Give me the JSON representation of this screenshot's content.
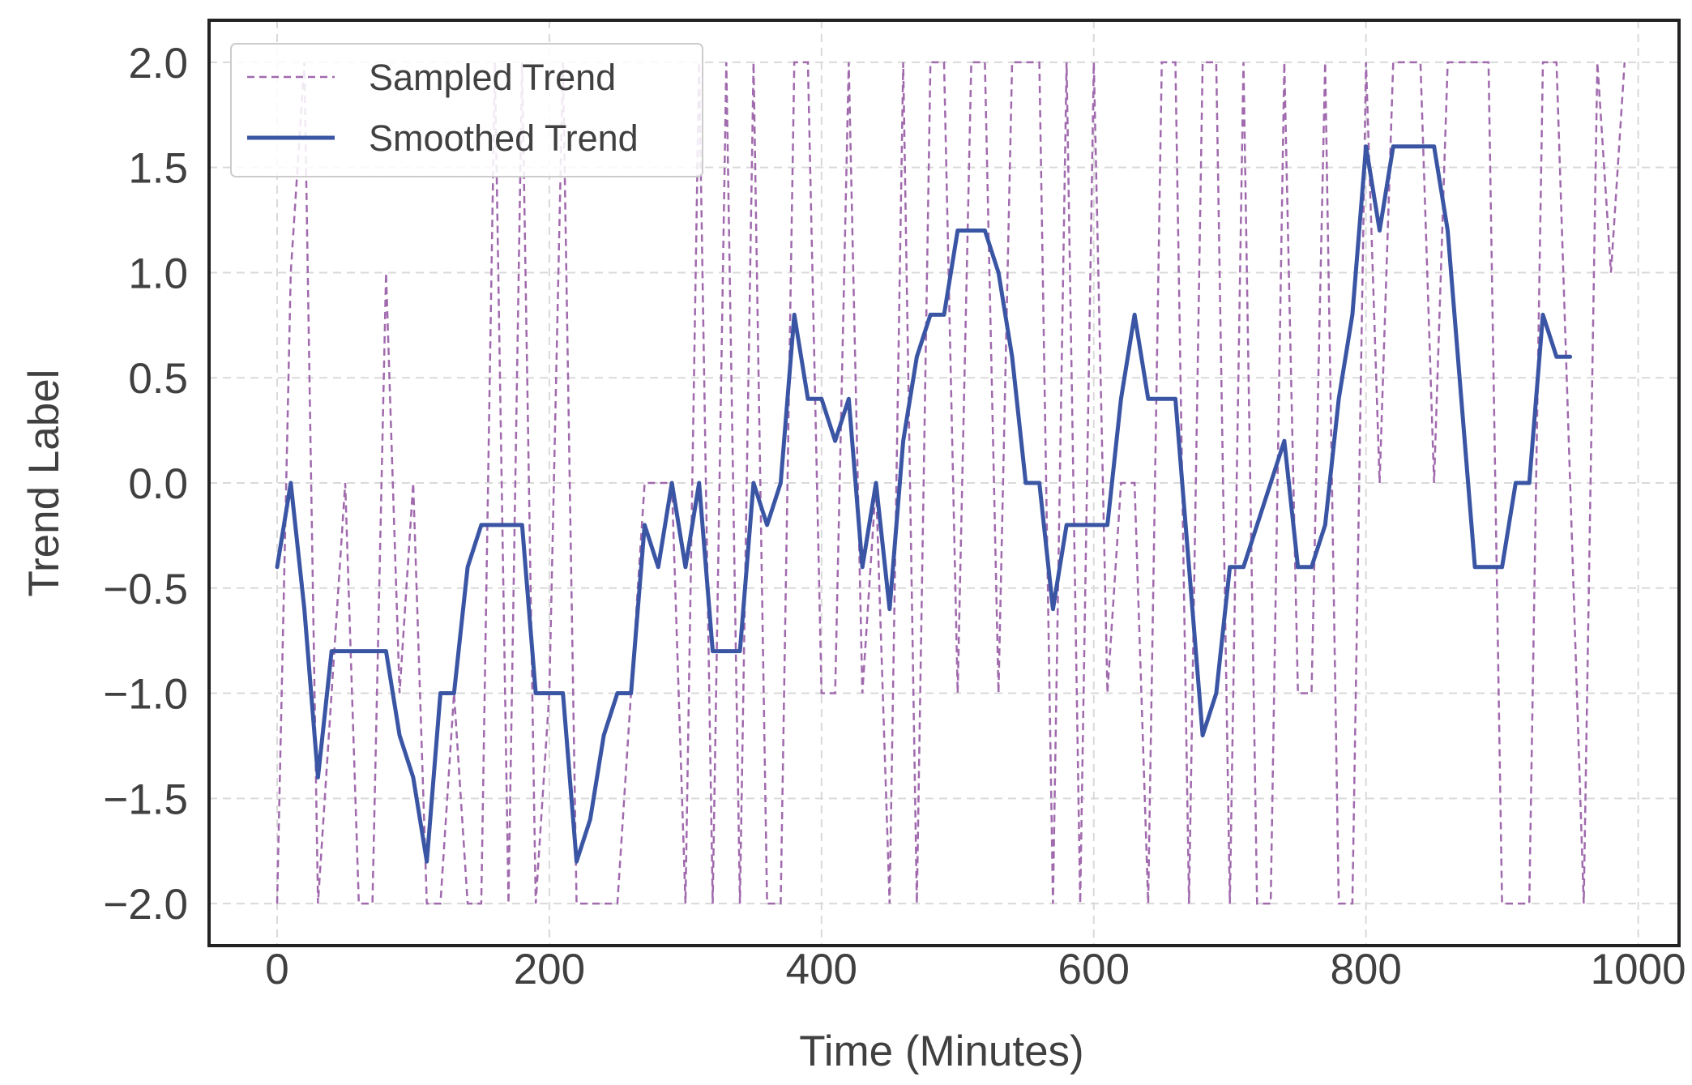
{
  "chart_data": {
    "type": "line",
    "title": "",
    "xlabel": "Time (Minutes)",
    "ylabel": "Trend Label",
    "xlim": [
      -50,
      1030
    ],
    "ylim": [
      -2.2,
      2.2
    ],
    "x_ticks": [
      0,
      200,
      400,
      600,
      800,
      1000
    ],
    "x_tick_labels": [
      "0",
      "200",
      "400",
      "600",
      "800",
      "1000"
    ],
    "y_ticks": [
      2.0,
      1.5,
      1.0,
      0.5,
      0.0,
      -0.5,
      -1.0,
      -1.5,
      -2.0
    ],
    "y_tick_labels": [
      "2.0",
      "1.5",
      "1.0",
      "0.5",
      "0.0",
      "−0.5",
      "−1.0",
      "−1.5",
      "−2.0"
    ],
    "grid": true,
    "legend_position": "top-left",
    "colors": {
      "sampled": "#a06aad",
      "smoothed": "#3a55a4",
      "frame": "#222222"
    },
    "series": [
      {
        "name": "Sampled Trend",
        "style": "dashed",
        "x": [
          0,
          10,
          20,
          30,
          40,
          50,
          60,
          70,
          80,
          90,
          100,
          110,
          120,
          130,
          140,
          150,
          160,
          170,
          180,
          190,
          200,
          210,
          220,
          230,
          240,
          250,
          260,
          270,
          280,
          290,
          300,
          310,
          320,
          330,
          340,
          350,
          360,
          370,
          380,
          390,
          400,
          410,
          420,
          430,
          440,
          450,
          460,
          470,
          480,
          490,
          500,
          510,
          520,
          530,
          540,
          550,
          560,
          570,
          580,
          590,
          600,
          610,
          620,
          630,
          640,
          650,
          660,
          670,
          680,
          690,
          700,
          710,
          720,
          730,
          740,
          750,
          760,
          770,
          780,
          790,
          800,
          810,
          820,
          830,
          840,
          850,
          860,
          870,
          880,
          890,
          900,
          910,
          920,
          930,
          940,
          950,
          960,
          970,
          980,
          990
        ],
        "values": [
          -2,
          1,
          2,
          -2,
          -1,
          0,
          -2,
          -2,
          1,
          -1,
          0,
          -2,
          -2,
          -1,
          -2,
          -2,
          2,
          -2,
          2,
          -2,
          -1,
          2,
          -2,
          -2,
          -2,
          -2,
          -1,
          0,
          0,
          0,
          -2,
          2,
          -2,
          2,
          -2,
          2,
          -2,
          -2,
          2,
          2,
          -1,
          -1,
          2,
          -1,
          0,
          -2,
          2,
          -2,
          2,
          2,
          -1,
          2,
          2,
          -1,
          2,
          2,
          2,
          -2,
          2,
          -2,
          2,
          -1,
          0,
          0,
          -2,
          2,
          2,
          -2,
          2,
          2,
          -2,
          2,
          -2,
          -2,
          2,
          -1,
          -1,
          2,
          -2,
          -2,
          2,
          0,
          2,
          2,
          2,
          0,
          2,
          2,
          2,
          2,
          -2,
          -2,
          -2,
          2,
          2,
          0,
          -2,
          2,
          1,
          2
        ]
      },
      {
        "name": "Smoothed Trend",
        "style": "solid",
        "x": [
          0,
          10,
          20,
          30,
          40,
          50,
          60,
          70,
          80,
          90,
          100,
          110,
          120,
          130,
          140,
          150,
          160,
          170,
          180,
          190,
          200,
          210,
          220,
          230,
          240,
          250,
          260,
          270,
          280,
          290,
          300,
          310,
          320,
          330,
          340,
          350,
          360,
          370,
          380,
          390,
          400,
          410,
          420,
          430,
          440,
          450,
          460,
          470,
          480,
          490,
          500,
          510,
          520,
          530,
          540,
          550,
          560,
          570,
          580,
          590,
          600,
          610,
          620,
          630,
          640,
          650,
          660,
          670,
          680,
          690,
          700,
          710,
          720,
          730,
          740,
          750,
          760,
          770,
          780,
          790,
          800,
          810,
          820,
          830,
          840,
          850,
          860,
          870,
          880,
          890,
          900,
          910,
          920,
          930,
          940,
          950
        ],
        "values": [
          -0.4,
          0.0,
          -0.6,
          -1.4,
          -0.8,
          -0.8,
          -0.8,
          -0.8,
          -0.8,
          -1.2,
          -1.4,
          -1.8,
          -1.0,
          -1.0,
          -0.4,
          -0.2,
          -0.2,
          -0.2,
          -0.2,
          -1.0,
          -1.0,
          -1.0,
          -1.8,
          -1.6,
          -1.2,
          -1.0,
          -1.0,
          -0.2,
          -0.4,
          0.0,
          -0.4,
          0.0,
          -0.8,
          -0.8,
          -0.8,
          0.0,
          -0.2,
          0.0,
          0.8,
          0.4,
          0.4,
          0.2,
          0.4,
          -0.4,
          0.0,
          -0.6,
          0.2,
          0.6,
          0.8,
          0.8,
          1.2,
          1.2,
          1.2,
          1.0,
          0.6,
          0.0,
          0.0,
          -0.6,
          -0.2,
          -0.2,
          -0.2,
          -0.2,
          0.4,
          0.8,
          0.4,
          0.4,
          0.4,
          -0.4,
          -1.2,
          -1.0,
          -0.4,
          -0.4,
          -0.2,
          0.0,
          0.2,
          -0.4,
          -0.4,
          -0.2,
          0.4,
          0.8,
          1.6,
          1.2,
          1.6,
          1.6,
          1.6,
          1.6,
          1.2,
          0.4,
          -0.4,
          -0.4,
          -0.4,
          0.0,
          0.0,
          0.8,
          0.6,
          0.6
        ]
      }
    ]
  }
}
